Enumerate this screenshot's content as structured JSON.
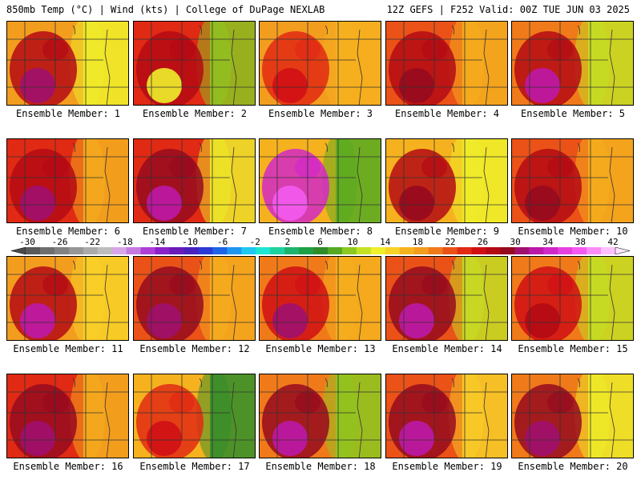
{
  "header": {
    "left": "850mb Temp (°C) | Wind (kts) | College of DuPage NEXLAB",
    "right": "12Z GEFS | F252 Valid: 00Z TUE JUN 03 2025"
  },
  "colorbar": {
    "labels": [
      "-30",
      "-26",
      "-22",
      "-18",
      "-14",
      "-10",
      "-6",
      "-2",
      "2",
      "6",
      "10",
      "14",
      "18",
      "22",
      "26",
      "30",
      "34",
      "38",
      "42"
    ],
    "colors": [
      "#5a5a5a",
      "#6e6e6e",
      "#828282",
      "#969696",
      "#aaaaaa",
      "#bdbdbd",
      "#d6a6e6",
      "#c67ae0",
      "#b03fd6",
      "#8a22c8",
      "#6a1bb8",
      "#4a22c0",
      "#2a3ad6",
      "#1e64e6",
      "#1e96ee",
      "#1ec8f0",
      "#1ee6d2",
      "#1ed2a0",
      "#1eb46e",
      "#1ea046",
      "#2f8c2a",
      "#55aa22",
      "#8cc820",
      "#c4e224",
      "#eef02a",
      "#f8d228",
      "#f6b21e",
      "#f39d1f",
      "#f07a1a",
      "#ea5218",
      "#e02a14",
      "#d00f14",
      "#b40a14",
      "#960a1e",
      "#a0106e",
      "#bc18a8",
      "#d228c8",
      "#e640e0",
      "#f45af0",
      "#fa8cf8",
      "#fcc0fc"
    ]
  },
  "panels": [
    {
      "caption": "Ensemble Member: 1",
      "base": "#f39d1f",
      "east": "#eef02a",
      "core": "#b40a14",
      "hot": "#a0106e"
    },
    {
      "caption": "Ensemble Member: 2",
      "base": "#e02a14",
      "east": "#8cc820",
      "core": "#b40a14",
      "hot": "#eef02a"
    },
    {
      "caption": "Ensemble Member: 3",
      "base": "#f39d1f",
      "east": "#f6b21e",
      "core": "#e02a14",
      "hot": "#d00f14"
    },
    {
      "caption": "Ensemble Member: 4",
      "base": "#ea5218",
      "east": "#f6b21e",
      "core": "#b40a14",
      "hot": "#960a1e"
    },
    {
      "caption": "Ensemble Member: 5",
      "base": "#f07a1a",
      "east": "#c4e224",
      "core": "#b40a14",
      "hot": "#bc18a8"
    },
    {
      "caption": "Ensemble Member: 6",
      "base": "#e02a14",
      "east": "#f6b21e",
      "core": "#b40a14",
      "hot": "#a0106e"
    },
    {
      "caption": "Ensemble Member: 7",
      "base": "#e02a14",
      "east": "#eef02a",
      "core": "#960a1e",
      "hot": "#bc18a8"
    },
    {
      "caption": "Ensemble Member: 8",
      "base": "#f6b21e",
      "east": "#55aa22",
      "core": "#d228c8",
      "hot": "#f45af0"
    },
    {
      "caption": "Ensemble Member: 9",
      "base": "#f6b21e",
      "east": "#eef02a",
      "core": "#b40a14",
      "hot": "#960a1e"
    },
    {
      "caption": "Ensemble Member: 10",
      "base": "#ea5218",
      "east": "#f6b21e",
      "core": "#b40a14",
      "hot": "#960a1e"
    },
    {
      "caption": "Ensemble Member: 11",
      "base": "#f39d1f",
      "east": "#f8d228",
      "core": "#b40a14",
      "hot": "#bc18a8"
    },
    {
      "caption": "Ensemble Member: 12",
      "base": "#ea5218",
      "east": "#f6b21e",
      "core": "#960a1e",
      "hot": "#a0106e"
    },
    {
      "caption": "Ensemble Member: 13",
      "base": "#f07a1a",
      "east": "#f6b21e",
      "core": "#d00f14",
      "hot": "#a0106e"
    },
    {
      "caption": "Ensemble Member: 14",
      "base": "#ea5218",
      "east": "#c4e224",
      "core": "#960a1e",
      "hot": "#bc18a8"
    },
    {
      "caption": "Ensemble Member: 15",
      "base": "#f07a1a",
      "east": "#c4e224",
      "core": "#d00f14",
      "hot": "#b40a14"
    },
    {
      "caption": "Ensemble Member: 16",
      "base": "#e02a14",
      "east": "#f6b21e",
      "core": "#960a1e",
      "hot": "#a0106e"
    },
    {
      "caption": "Ensemble Member: 17",
      "base": "#f6b21e",
      "east": "#2f8c2a",
      "core": "#e02a14",
      "hot": "#d00f14"
    },
    {
      "caption": "Ensemble Member: 18",
      "base": "#f07a1a",
      "east": "#8cc820",
      "core": "#960a1e",
      "hot": "#bc18a8"
    },
    {
      "caption": "Ensemble Member: 19",
      "base": "#ea5218",
      "east": "#f8d228",
      "core": "#960a1e",
      "hot": "#bc18a8"
    },
    {
      "caption": "Ensemble Member: 20",
      "base": "#f07a1a",
      "east": "#eef02a",
      "core": "#960a1e",
      "hot": "#a0106e"
    }
  ]
}
